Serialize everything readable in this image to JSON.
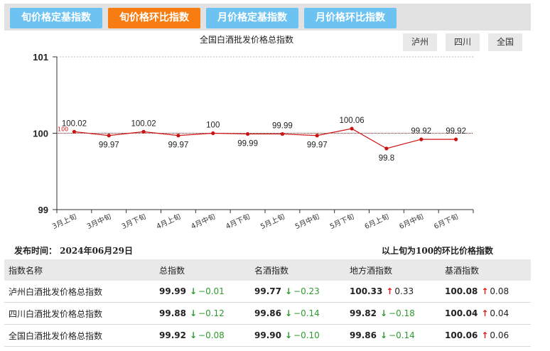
{
  "tabs": [
    {
      "label": "旬价格定基指数",
      "active": false
    },
    {
      "label": "旬价格环比指数",
      "active": true
    },
    {
      "label": "月价格定基指数",
      "active": false
    },
    {
      "label": "月价格环比指数",
      "active": false
    }
  ],
  "regions": [
    "泸州",
    "四川",
    "全国"
  ],
  "colors": {
    "tab_active": "#f77c12",
    "tab_inactive": "#6cc3f2",
    "line": "#cc1111",
    "baseline": "#8b1a1a",
    "down": "#2e9a2e",
    "up": "#e11b1b"
  },
  "chart_data": {
    "type": "line",
    "title": "全国白酒批发价格总指数",
    "categories": [
      "3月上旬",
      "3月中旬",
      "3月下旬",
      "4月上旬",
      "4月中旬",
      "4月下旬",
      "5月上旬",
      "5月中旬",
      "5月下旬",
      "6月上旬",
      "6月中旬",
      "6月下旬"
    ],
    "series": [
      {
        "values": [
          100.02,
          99.97,
          100.02,
          99.97,
          100,
          99.99,
          99.99,
          99.97,
          100.06,
          99.8,
          99.92,
          99.92
        ]
      }
    ],
    "value_labels": [
      "100.02",
      "99.97",
      "100.02",
      "99.97",
      "100",
      "99.99",
      "99.99",
      "99.97",
      "100.06",
      "99.8",
      "99.92",
      "99.92"
    ],
    "ylim": [
      99,
      101
    ],
    "yticks": [
      "99",
      "100",
      "101"
    ],
    "reference_line": {
      "value": 100,
      "label": "100"
    },
    "grid": true,
    "legend": "none"
  },
  "meta": {
    "publish": "发布时间：  2024年06月29日",
    "note": "以上旬为100的环比价格指数"
  },
  "table": {
    "headers": [
      "指数名称",
      "总指数",
      "名酒指数",
      "地方酒指数",
      "基酒指数"
    ],
    "rows": [
      {
        "name": "泸州白酒批发价格总指数",
        "cells": [
          {
            "value": "99.99",
            "dir": "down",
            "change": "−0.01"
          },
          {
            "value": "99.77",
            "dir": "down",
            "change": "−0.23"
          },
          {
            "value": "100.33",
            "dir": "up",
            "change": "0.33"
          },
          {
            "value": "100.08",
            "dir": "up",
            "change": "0.08"
          }
        ]
      },
      {
        "name": "四川白酒批发价格总指数",
        "cells": [
          {
            "value": "99.88",
            "dir": "down",
            "change": "−0.12"
          },
          {
            "value": "99.86",
            "dir": "down",
            "change": "−0.14"
          },
          {
            "value": "99.82",
            "dir": "down",
            "change": "−0.18"
          },
          {
            "value": "100.04",
            "dir": "up",
            "change": "0.04"
          }
        ]
      },
      {
        "name": "全国白酒批发价格总指数",
        "cells": [
          {
            "value": "99.92",
            "dir": "down",
            "change": "−0.08"
          },
          {
            "value": "99.90",
            "dir": "down",
            "change": "−0.10"
          },
          {
            "value": "99.86",
            "dir": "down",
            "change": "−0.14"
          },
          {
            "value": "100.06",
            "dir": "up",
            "change": "0.06"
          }
        ]
      }
    ]
  }
}
